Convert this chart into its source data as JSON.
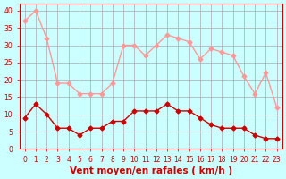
{
  "hours": [
    0,
    1,
    2,
    3,
    4,
    5,
    6,
    7,
    8,
    9,
    10,
    11,
    12,
    13,
    14,
    15,
    16,
    17,
    18,
    19,
    20,
    21,
    22,
    23
  ],
  "wind_avg": [
    9,
    13,
    10,
    6,
    6,
    4,
    6,
    6,
    8,
    8,
    11,
    11,
    11,
    13,
    11,
    11,
    9,
    7,
    6,
    6,
    6,
    4,
    3,
    3
  ],
  "wind_gust": [
    37,
    40,
    32,
    19,
    19,
    16,
    16,
    16,
    19,
    30,
    30,
    27,
    30,
    33,
    32,
    31,
    26,
    29,
    28,
    27,
    21,
    16,
    22,
    12
  ],
  "color_avg": "#cc0000",
  "color_gust": "#ff9999",
  "bg_color": "#ccffff",
  "grid_color": "#aaaaaa",
  "xlabel": "Vent moyen/en rafales ( km/h )",
  "xlabel_color": "#cc0000",
  "ylim": [
    0,
    42
  ],
  "yticks": [
    0,
    5,
    10,
    15,
    20,
    25,
    30,
    35,
    40
  ],
  "tick_color": "#cc0000",
  "label_fontsize": 7.5
}
